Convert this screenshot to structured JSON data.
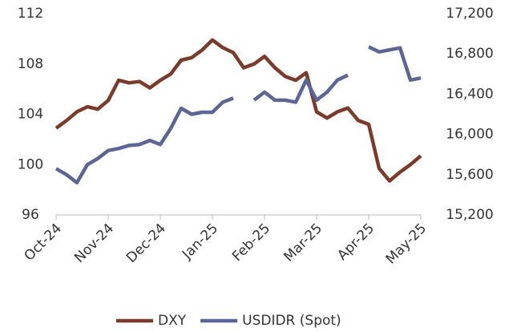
{
  "chart_data": {
    "type": "line",
    "categories": [
      "Oct-24",
      null,
      null,
      null,
      null,
      "Nov-24",
      null,
      null,
      null,
      null,
      "Dec-24",
      null,
      null,
      null,
      null,
      "Jan-25",
      null,
      null,
      null,
      null,
      "Feb-25",
      null,
      null,
      null,
      null,
      "Mar-25",
      null,
      null,
      null,
      null,
      "Apr-25",
      null,
      null,
      null,
      null,
      "May-25"
    ],
    "series": [
      {
        "name": "DXY",
        "color": "#7b3b2a",
        "values": [
          102.9,
          103.5,
          104.2,
          104.6,
          104.4,
          105.1,
          106.7,
          106.5,
          106.6,
          106.1,
          106.7,
          107.2,
          108.3,
          108.5,
          109.1,
          109.9,
          109.3,
          108.9,
          107.7,
          108.0,
          108.6,
          107.7,
          107.0,
          106.7,
          107.3,
          104.2,
          103.7,
          104.2,
          104.5,
          103.5,
          103.2,
          99.7,
          98.7,
          99.4,
          100.0,
          100.7
        ]
      },
      {
        "name": "USDIDR (Spot)",
        "color": "#5b6696",
        "axis": "y2",
        "values": [
          15660,
          15600,
          15520,
          15700,
          15760,
          15840,
          15860,
          15890,
          15900,
          15940,
          15900,
          16060,
          16260,
          16200,
          16220,
          16220,
          16320,
          16360,
          null,
          16340,
          16420,
          16340,
          16340,
          16320,
          16540,
          16340,
          16420,
          16540,
          16590,
          null,
          16870,
          16820,
          16840,
          16860,
          16540,
          16560
        ]
      }
    ],
    "ylim": [
      96,
      112
    ],
    "yticks": [
      96,
      100,
      104,
      108,
      112
    ],
    "y2lim": [
      15200,
      17200
    ],
    "y2ticks": [
      {
        "value": 15200,
        "label": "15,200"
      },
      {
        "value": 15600,
        "label": "15,600"
      },
      {
        "value": 16000,
        "label": "16,000"
      },
      {
        "value": 16400,
        "label": "16,400"
      },
      {
        "value": 16800,
        "label": "16,800"
      },
      {
        "value": 17200,
        "label": "17,200"
      }
    ],
    "legend": "bottom"
  }
}
